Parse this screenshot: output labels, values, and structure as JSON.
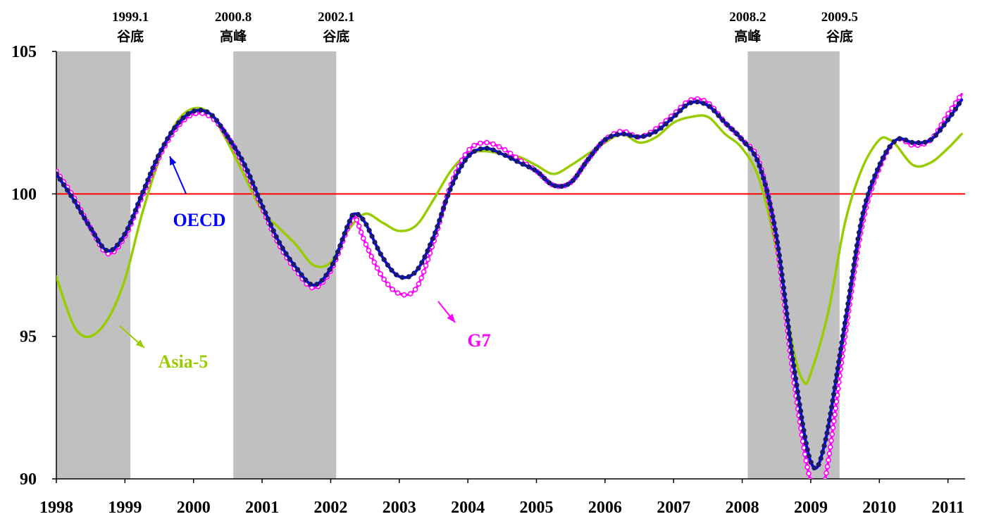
{
  "chart_data": {
    "type": "line",
    "title": "",
    "xlabel": "",
    "ylabel": "",
    "xlim": [
      1998,
      2011.25
    ],
    "ylim": [
      90,
      105
    ],
    "x_ticks": [
      "1998",
      "1999",
      "2000",
      "2001",
      "2002",
      "2003",
      "2004",
      "2005",
      "2006",
      "2007",
      "2008",
      "2009",
      "2010",
      "2011"
    ],
    "y_ticks": [
      "90",
      "95",
      "100",
      "105"
    ],
    "reference_line": {
      "y": 100,
      "color": "#ff0000"
    },
    "shaded_periods": [
      {
        "start": 1998.0,
        "end": 1999.08
      },
      {
        "start": 2000.58,
        "end": 2002.08
      },
      {
        "start": 2008.08,
        "end": 2009.42
      }
    ],
    "period_labels": [
      {
        "x": 1999.08,
        "date": "1999.1",
        "event": "谷底"
      },
      {
        "x": 2000.58,
        "date": "2000.8",
        "event": "高峰"
      },
      {
        "x": 2002.08,
        "date": "2002.1",
        "event": "谷底"
      },
      {
        "x": 2008.08,
        "date": "2008.2",
        "event": "高峰"
      },
      {
        "x": 2009.42,
        "date": "2009.5",
        "event": "谷底"
      }
    ],
    "series": [
      {
        "name": "OECD",
        "color": "#0000ff",
        "marker_color": "#1a1a6e",
        "points": [
          [
            1998.0,
            100.7
          ],
          [
            1998.25,
            99.8
          ],
          [
            1998.5,
            98.8
          ],
          [
            1998.75,
            98.0
          ],
          [
            1999.0,
            98.6
          ],
          [
            1999.25,
            100.0
          ],
          [
            1999.5,
            101.4
          ],
          [
            1999.75,
            102.4
          ],
          [
            2000.0,
            102.9
          ],
          [
            2000.25,
            102.8
          ],
          [
            2000.5,
            102.0
          ],
          [
            2000.75,
            101.0
          ],
          [
            2001.0,
            99.6
          ],
          [
            2001.25,
            98.3
          ],
          [
            2001.5,
            97.4
          ],
          [
            2001.75,
            96.8
          ],
          [
            2002.0,
            97.4
          ],
          [
            2002.25,
            98.9
          ],
          [
            2002.35,
            99.3
          ],
          [
            2002.5,
            99.0
          ],
          [
            2002.75,
            97.8
          ],
          [
            2003.0,
            97.1
          ],
          [
            2003.25,
            97.3
          ],
          [
            2003.5,
            98.5
          ],
          [
            2003.75,
            100.2
          ],
          [
            2004.0,
            101.3
          ],
          [
            2004.25,
            101.6
          ],
          [
            2004.5,
            101.4
          ],
          [
            2004.75,
            101.1
          ],
          [
            2005.0,
            100.8
          ],
          [
            2005.25,
            100.3
          ],
          [
            2005.5,
            100.4
          ],
          [
            2005.75,
            101.2
          ],
          [
            2006.0,
            101.9
          ],
          [
            2006.25,
            102.1
          ],
          [
            2006.5,
            102.0
          ],
          [
            2006.75,
            102.2
          ],
          [
            2007.0,
            102.7
          ],
          [
            2007.25,
            103.2
          ],
          [
            2007.5,
            103.1
          ],
          [
            2007.75,
            102.5
          ],
          [
            2008.0,
            101.9
          ],
          [
            2008.25,
            101.0
          ],
          [
            2008.5,
            98.5
          ],
          [
            2008.75,
            94.0
          ],
          [
            2009.0,
            90.6
          ],
          [
            2009.2,
            91.2
          ],
          [
            2009.5,
            95.5
          ],
          [
            2009.75,
            99.2
          ],
          [
            2010.0,
            101.0
          ],
          [
            2010.25,
            101.9
          ],
          [
            2010.5,
            101.8
          ],
          [
            2010.75,
            101.9
          ],
          [
            2011.0,
            102.6
          ],
          [
            2011.2,
            103.3
          ]
        ]
      },
      {
        "name": "G7",
        "color": "#ff00ff",
        "points": [
          [
            1998.0,
            100.8
          ],
          [
            1998.25,
            99.9
          ],
          [
            1998.5,
            98.8
          ],
          [
            1998.75,
            97.9
          ],
          [
            1999.0,
            98.5
          ],
          [
            1999.25,
            99.9
          ],
          [
            1999.5,
            101.3
          ],
          [
            1999.75,
            102.3
          ],
          [
            2000.0,
            102.8
          ],
          [
            2000.25,
            102.7
          ],
          [
            2000.5,
            102.0
          ],
          [
            2000.75,
            100.9
          ],
          [
            2001.0,
            99.5
          ],
          [
            2001.25,
            98.2
          ],
          [
            2001.5,
            97.3
          ],
          [
            2001.75,
            96.7
          ],
          [
            2002.0,
            97.3
          ],
          [
            2002.25,
            98.8
          ],
          [
            2002.35,
            99.2
          ],
          [
            2002.5,
            98.3
          ],
          [
            2002.75,
            97.1
          ],
          [
            2003.0,
            96.5
          ],
          [
            2003.25,
            96.7
          ],
          [
            2003.5,
            98.3
          ],
          [
            2003.75,
            100.3
          ],
          [
            2004.0,
            101.5
          ],
          [
            2004.25,
            101.8
          ],
          [
            2004.5,
            101.6
          ],
          [
            2004.75,
            101.2
          ],
          [
            2005.0,
            100.8
          ],
          [
            2005.25,
            100.3
          ],
          [
            2005.5,
            100.4
          ],
          [
            2005.75,
            101.2
          ],
          [
            2006.0,
            101.9
          ],
          [
            2006.25,
            102.2
          ],
          [
            2006.5,
            102.0
          ],
          [
            2006.75,
            102.3
          ],
          [
            2007.0,
            102.8
          ],
          [
            2007.25,
            103.3
          ],
          [
            2007.5,
            103.2
          ],
          [
            2007.75,
            102.5
          ],
          [
            2008.0,
            101.9
          ],
          [
            2008.25,
            101.1
          ],
          [
            2008.5,
            98.3
          ],
          [
            2008.75,
            93.5
          ],
          [
            2009.0,
            89.9
          ],
          [
            2009.2,
            89.9
          ],
          [
            2009.5,
            95.0
          ],
          [
            2009.75,
            98.9
          ],
          [
            2010.0,
            100.9
          ],
          [
            2010.25,
            101.9
          ],
          [
            2010.5,
            101.7
          ],
          [
            2010.75,
            101.9
          ],
          [
            2011.0,
            102.8
          ],
          [
            2011.2,
            103.5
          ]
        ]
      },
      {
        "name": "Asia-5",
        "color": "#99cc00",
        "points": [
          [
            1998.0,
            97.1
          ],
          [
            1998.15,
            96.0
          ],
          [
            1998.3,
            95.2
          ],
          [
            1998.5,
            95.0
          ],
          [
            1998.75,
            95.6
          ],
          [
            1999.0,
            97.0
          ],
          [
            1999.25,
            99.3
          ],
          [
            1999.5,
            101.2
          ],
          [
            1999.75,
            102.5
          ],
          [
            2000.0,
            103.0
          ],
          [
            2000.25,
            102.8
          ],
          [
            2000.5,
            101.8
          ],
          [
            2000.75,
            100.6
          ],
          [
            2001.0,
            99.4
          ],
          [
            2001.25,
            98.8
          ],
          [
            2001.5,
            98.2
          ],
          [
            2001.75,
            97.5
          ],
          [
            2002.0,
            97.6
          ],
          [
            2002.25,
            98.7
          ],
          [
            2002.5,
            99.3
          ],
          [
            2002.75,
            99.0
          ],
          [
            2003.0,
            98.7
          ],
          [
            2003.25,
            98.9
          ],
          [
            2003.5,
            99.8
          ],
          [
            2003.75,
            100.8
          ],
          [
            2004.0,
            101.4
          ],
          [
            2004.25,
            101.5
          ],
          [
            2004.5,
            101.4
          ],
          [
            2004.75,
            101.3
          ],
          [
            2005.0,
            101.0
          ],
          [
            2005.25,
            100.7
          ],
          [
            2005.5,
            101.0
          ],
          [
            2005.75,
            101.4
          ],
          [
            2006.0,
            101.8
          ],
          [
            2006.25,
            102.1
          ],
          [
            2006.5,
            101.8
          ],
          [
            2006.75,
            102.0
          ],
          [
            2007.0,
            102.5
          ],
          [
            2007.25,
            102.7
          ],
          [
            2007.5,
            102.7
          ],
          [
            2007.75,
            102.1
          ],
          [
            2008.0,
            101.6
          ],
          [
            2008.25,
            100.5
          ],
          [
            2008.5,
            98.0
          ],
          [
            2008.75,
            94.5
          ],
          [
            2008.9,
            93.4
          ],
          [
            2009.0,
            93.7
          ],
          [
            2009.25,
            95.8
          ],
          [
            2009.5,
            99.0
          ],
          [
            2009.75,
            100.9
          ],
          [
            2010.0,
            101.9
          ],
          [
            2010.15,
            101.9
          ],
          [
            2010.25,
            101.7
          ],
          [
            2010.5,
            101.0
          ],
          [
            2010.75,
            101.1
          ],
          [
            2011.0,
            101.6
          ],
          [
            2011.2,
            102.1
          ]
        ]
      }
    ],
    "annotations": [
      {
        "text": "OECD",
        "series": "OECD"
      },
      {
        "text": "G7",
        "series": "G7"
      },
      {
        "text": "Asia-5",
        "series": "Asia-5"
      }
    ]
  }
}
